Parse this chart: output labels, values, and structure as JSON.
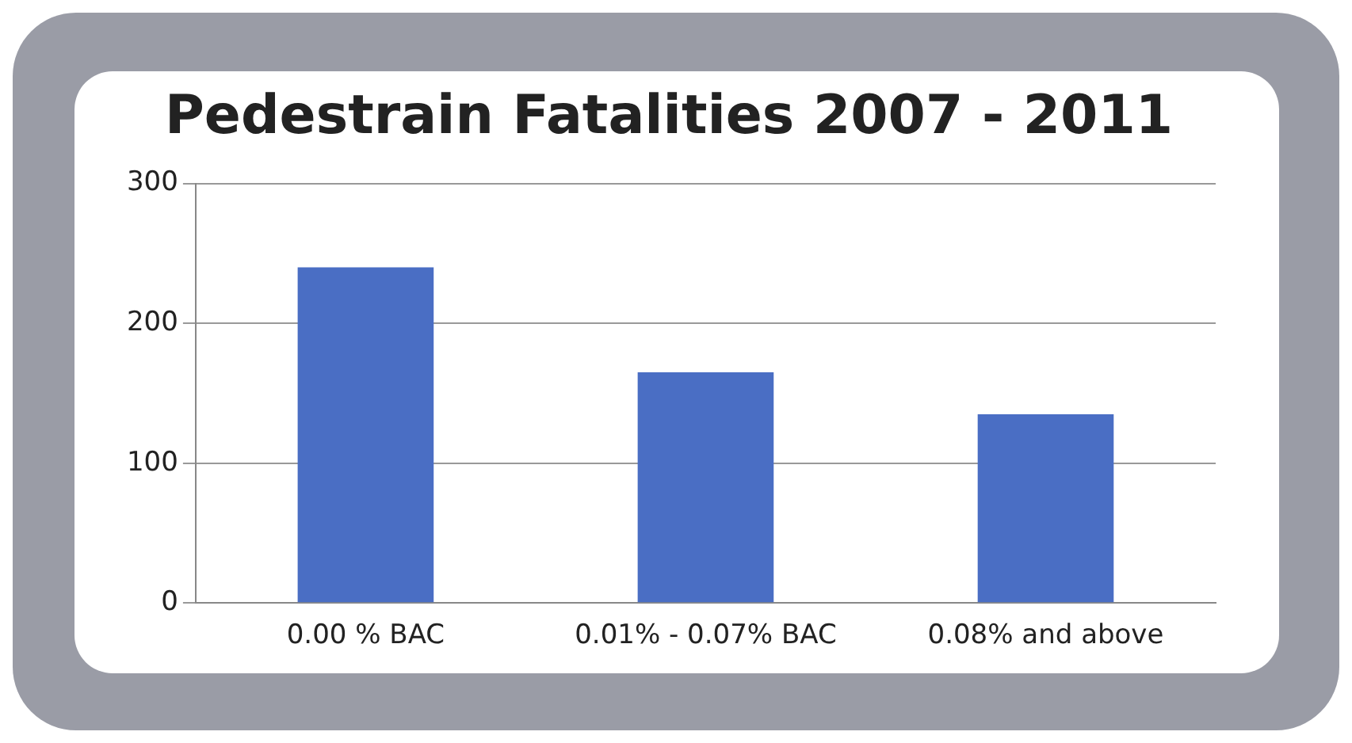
{
  "chart_data": {
    "type": "bar",
    "title": "Pedestrain Fatalities 2007 - 2011",
    "categories": [
      "0.00 % BAC",
      "0.01% - 0.07% BAC",
      "0.08% and above"
    ],
    "values": [
      240,
      165,
      135
    ],
    "color": "#4a6ec4",
    "ylim": [
      0,
      300
    ],
    "yticks": [
      0,
      100,
      200,
      300
    ],
    "grid": "y",
    "legend": false
  }
}
